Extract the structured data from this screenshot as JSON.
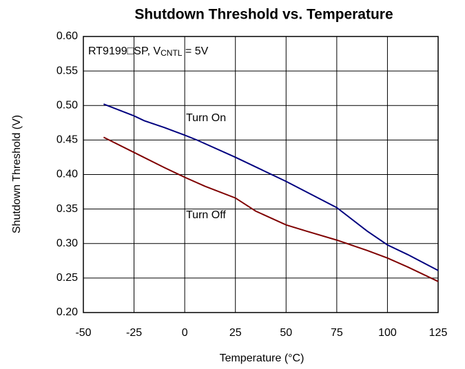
{
  "chart_data": {
    "type": "line",
    "title": "Shutdown Threshold vs. Temperature",
    "annotation": [
      "RT9199□SP, V",
      "CNTL",
      " = 5V"
    ],
    "x_label": "Temperature (°C)",
    "y_label": "Shutdown Threshold (V)",
    "xlim": [
      -50,
      125
    ],
    "xticks": [
      -50,
      -25,
      0,
      25,
      50,
      75,
      100,
      125
    ],
    "ylim": [
      0.2,
      0.6
    ],
    "yticks": [
      {
        "value": 0.2,
        "label": "0.20"
      },
      0.25,
      {
        "value": 0.3,
        "label": "0.30"
      },
      0.35,
      {
        "value": 0.4,
        "label": "0.40"
      },
      0.45,
      {
        "value": 0.5,
        "label": "0.50"
      },
      0.55,
      {
        "value": 0.6,
        "label": "0.60"
      }
    ],
    "grid": true,
    "series": [
      {
        "name": "Turn On",
        "color": "#00007f",
        "x": [
          -40,
          -25,
          -20,
          -10,
          0,
          6,
          25,
          50,
          75,
          90,
          100,
          110,
          125
        ],
        "values": [
          0.502,
          0.485,
          0.478,
          0.468,
          0.457,
          0.45,
          0.425,
          0.39,
          0.352,
          0.318,
          0.298,
          0.284,
          0.261
        ]
      },
      {
        "name": "Turn Off",
        "color": "#7f0000",
        "x": [
          -40,
          -25,
          -10,
          0,
          10,
          25,
          35,
          50,
          60,
          75,
          90,
          100,
          110,
          125
        ],
        "values": [
          0.454,
          0.432,
          0.41,
          0.396,
          0.383,
          0.366,
          0.347,
          0.327,
          0.318,
          0.305,
          0.29,
          0.279,
          0.266,
          0.245
        ]
      }
    ]
  }
}
